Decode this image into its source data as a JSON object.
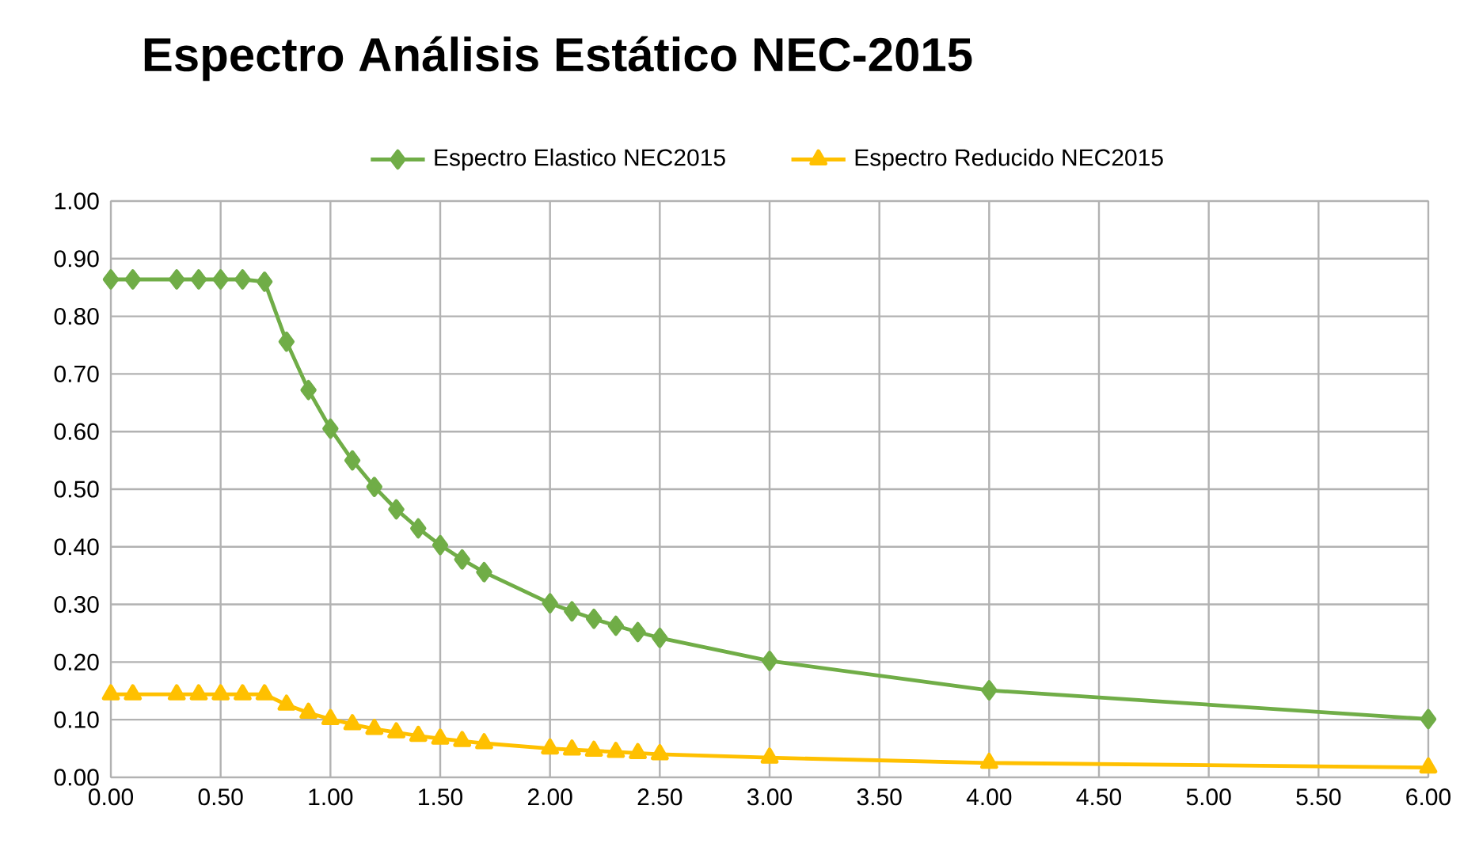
{
  "chart_data": {
    "type": "line",
    "title": "Espectro Análisis Estático NEC-2015",
    "x": [
      0,
      0.1,
      0.3,
      0.4,
      0.5,
      0.6,
      0.7,
      0.8,
      0.9,
      1.0,
      1.1,
      1.2,
      1.3,
      1.4,
      1.5,
      1.6,
      1.7,
      2.0,
      2.1,
      2.2,
      2.3,
      2.4,
      2.5,
      3.0,
      4.0,
      6.0
    ],
    "series": [
      {
        "name": "Espectro Elastico NEC2015",
        "color": "#70ad47",
        "marker": "diamond",
        "values": [
          0.864,
          0.864,
          0.864,
          0.864,
          0.864,
          0.864,
          0.86,
          0.756,
          0.672,
          0.605,
          0.55,
          0.504,
          0.465,
          0.432,
          0.403,
          0.378,
          0.356,
          0.302,
          0.288,
          0.275,
          0.263,
          0.252,
          0.242,
          0.202,
          0.151,
          0.101
        ]
      },
      {
        "name": "Espectro Reducido NEC2015",
        "color": "#ffc000",
        "marker": "triangle",
        "values": [
          0.144,
          0.144,
          0.144,
          0.144,
          0.144,
          0.144,
          0.144,
          0.126,
          0.112,
          0.101,
          0.092,
          0.084,
          0.078,
          0.072,
          0.067,
          0.063,
          0.059,
          0.05,
          0.048,
          0.046,
          0.044,
          0.042,
          0.04,
          0.034,
          0.025,
          0.017
        ]
      }
    ],
    "xlim": [
      0,
      6
    ],
    "ylim": [
      0,
      1
    ],
    "xticks": [
      {
        "value": 0,
        "label": "0.00"
      },
      {
        "value": 0.5,
        "label": "0.50"
      },
      {
        "value": 1,
        "label": "1.00"
      },
      {
        "value": 1.5,
        "label": "1.50"
      },
      {
        "value": 2,
        "label": "2.00"
      },
      {
        "value": 2.5,
        "label": "2.50"
      },
      {
        "value": 3,
        "label": "3.00"
      },
      {
        "value": 3.5,
        "label": "3.50"
      },
      {
        "value": 4,
        "label": "4.00"
      },
      {
        "value": 4.5,
        "label": "4.50"
      },
      {
        "value": 5,
        "label": "5.00"
      },
      {
        "value": 5.5,
        "label": "5.50"
      },
      {
        "value": 6,
        "label": "6.00"
      }
    ],
    "yticks": [
      {
        "value": 0,
        "label": "0.00"
      },
      {
        "value": 0.1,
        "label": "0.10"
      },
      {
        "value": 0.2,
        "label": "0.20"
      },
      {
        "value": 0.3,
        "label": "0.30"
      },
      {
        "value": 0.4,
        "label": "0.40"
      },
      {
        "value": 0.5,
        "label": "0.50"
      },
      {
        "value": 0.6,
        "label": "0.60"
      },
      {
        "value": 0.7,
        "label": "0.70"
      },
      {
        "value": 0.8,
        "label": "0.80"
      },
      {
        "value": 0.9,
        "label": "0.90"
      },
      {
        "value": 1,
        "label": "1.00"
      }
    ],
    "grid": true,
    "legend": "top",
    "line_style": "solid"
  }
}
